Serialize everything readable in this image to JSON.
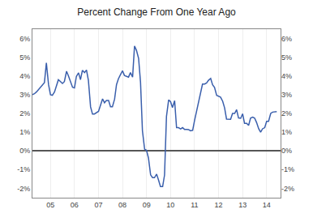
{
  "chart_data": {
    "type": "line",
    "title": "Percent Change From One Year Ago",
    "color": "#3a5fac",
    "grid": "x",
    "xlim": [
      2004.25,
      2014.58
    ],
    "xticks": [
      {
        "value": 2005,
        "label": "05"
      },
      {
        "value": 2006,
        "label": "06"
      },
      {
        "value": 2007,
        "label": "07"
      },
      {
        "value": 2008,
        "label": "08"
      },
      {
        "value": 2009,
        "label": "09"
      },
      {
        "value": 2010,
        "label": "10"
      },
      {
        "value": 2011,
        "label": "11"
      },
      {
        "value": 2012,
        "label": "12"
      },
      {
        "value": 2013,
        "label": "13"
      },
      {
        "value": 2014,
        "label": "14"
      }
    ],
    "ylim": [
      -2.5,
      6.5
    ],
    "yticks": [
      {
        "value": -2,
        "label": "-2%"
      },
      {
        "value": -1,
        "label": "-1%"
      },
      {
        "value": 0,
        "label": "0%"
      },
      {
        "value": 1,
        "label": "1%"
      },
      {
        "value": 2,
        "label": "2%"
      },
      {
        "value": 3,
        "label": "3%"
      },
      {
        "value": 4,
        "label": "4%"
      },
      {
        "value": 5,
        "label": "5%"
      },
      {
        "value": 6,
        "label": "6%"
      }
    ],
    "y2lim": [
      -2.5,
      6.5
    ],
    "y2ticks": [
      {
        "value": -2,
        "label": "-2%"
      },
      {
        "value": -1,
        "label": "-1%"
      },
      {
        "value": 0,
        "label": "0%"
      },
      {
        "value": 1,
        "label": "1%"
      },
      {
        "value": 2,
        "label": "2%"
      },
      {
        "value": 3,
        "label": "3%"
      },
      {
        "value": 4,
        "label": "4%"
      },
      {
        "value": 5,
        "label": "5%"
      },
      {
        "value": 6,
        "label": "6%"
      }
    ],
    "x": [
      2004.25,
      2004.33,
      2004.42,
      2004.5,
      2004.58,
      2004.67,
      2004.75,
      2004.83,
      2004.92,
      2005.0,
      2005.08,
      2005.17,
      2005.25,
      2005.33,
      2005.42,
      2005.5,
      2005.58,
      2005.67,
      2005.75,
      2005.83,
      2005.92,
      2006.0,
      2006.08,
      2006.17,
      2006.25,
      2006.33,
      2006.42,
      2006.5,
      2006.58,
      2006.67,
      2006.75,
      2006.83,
      2006.92,
      2007.0,
      2007.08,
      2007.17,
      2007.25,
      2007.33,
      2007.42,
      2007.5,
      2007.58,
      2007.67,
      2007.75,
      2007.83,
      2007.92,
      2008.0,
      2008.08,
      2008.17,
      2008.25,
      2008.33,
      2008.42,
      2008.5,
      2008.58,
      2008.67,
      2008.75,
      2008.83,
      2008.92,
      2009.0,
      2009.08,
      2009.17,
      2009.25,
      2009.33,
      2009.42,
      2009.5,
      2009.58,
      2009.67,
      2009.75,
      2009.83,
      2009.92,
      2010.0,
      2010.08,
      2010.17,
      2010.25,
      2010.33,
      2010.42,
      2010.5,
      2010.58,
      2010.67,
      2010.75,
      2010.83,
      2010.92,
      2011.0,
      2011.08,
      2011.17,
      2011.25,
      2011.33,
      2011.42,
      2011.5,
      2011.58,
      2011.67,
      2011.75,
      2011.83,
      2011.92,
      2012.0,
      2012.08,
      2012.17,
      2012.25,
      2012.33,
      2012.42,
      2012.5,
      2012.58,
      2012.67,
      2012.75,
      2012.83,
      2012.92,
      2013.0,
      2013.08,
      2013.17,
      2013.25,
      2013.33,
      2013.42,
      2013.5,
      2013.58,
      2013.67,
      2013.75,
      2013.83,
      2013.92,
      2014.0,
      2014.08,
      2014.17,
      2014.25,
      2014.33,
      2014.42
    ],
    "values": [
      3.0,
      3.05,
      3.15,
      3.27,
      3.4,
      3.55,
      3.65,
      4.7,
      3.55,
      3.0,
      2.97,
      3.15,
      3.5,
      3.8,
      3.7,
      3.6,
      3.7,
      4.25,
      4.0,
      3.75,
      3.4,
      3.36,
      3.98,
      4.17,
      3.8,
      4.3,
      4.18,
      4.32,
      3.77,
      2.35,
      1.97,
      1.97,
      2.06,
      2.11,
      2.42,
      2.78,
      2.57,
      2.69,
      2.69,
      2.36,
      2.36,
      2.76,
      3.54,
      3.85,
      4.08,
      4.28,
      4.03,
      4.0,
      3.94,
      4.18,
      3.94,
      5.6,
      5.37,
      4.94,
      3.66,
      1.07,
      0.09,
      0.03,
      -0.38,
      -1.28,
      -1.43,
      -1.43,
      -1.24,
      -1.56,
      -1.91,
      -1.91,
      -1.29,
      1.84,
      2.72,
      2.63,
      2.31,
      2.68,
      1.24,
      1.24,
      1.17,
      1.24,
      1.15,
      1.15,
      1.14,
      1.07,
      1.1,
      1.63,
      2.11,
      2.68,
      3.16,
      3.57,
      3.57,
      3.63,
      3.77,
      3.87,
      3.53,
      3.39,
      2.96,
      2.93,
      2.87,
      2.65,
      2.3,
      1.7,
      1.7,
      1.69,
      2.0,
      2.0,
      2.2,
      1.76,
      1.74,
      1.98,
      1.47,
      1.47,
      1.36,
      1.75,
      1.8,
      1.75,
      1.52,
      1.18,
      1.0,
      1.18,
      1.24,
      1.58,
      1.58,
      2.0,
      2.07,
      2.1,
      2.1
    ]
  }
}
